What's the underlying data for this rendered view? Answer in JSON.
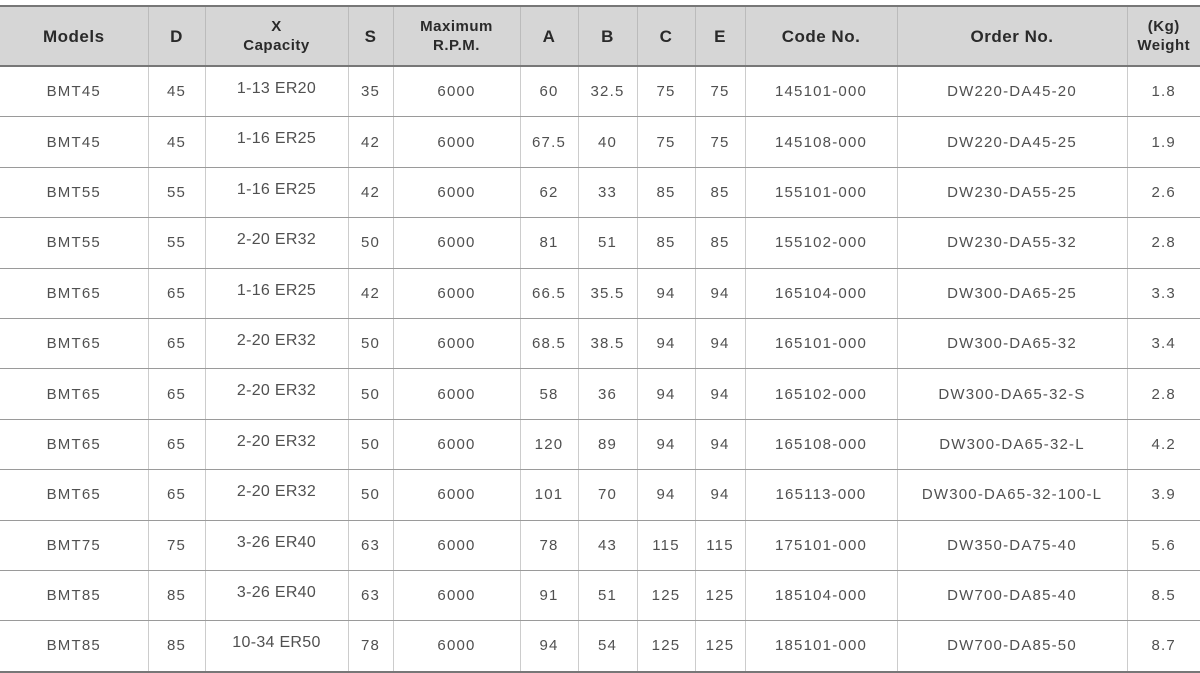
{
  "table": {
    "header": [
      "Models",
      "D",
      [
        "X",
        "Capacity"
      ],
      "S",
      [
        "Maximum",
        "R.P.M."
      ],
      "A",
      "B",
      "C",
      "E",
      "Code No.",
      "Order No.",
      [
        "(Kg)",
        "Weight"
      ]
    ],
    "rows": [
      [
        "BMT45",
        "45",
        "1-13 ER20",
        "35",
        "6000",
        "60",
        "32.5",
        "75",
        "75",
        "145101-000",
        "DW220-DA45-20",
        "1.8"
      ],
      [
        "BMT45",
        "45",
        "1-16 ER25",
        "42",
        "6000",
        "67.5",
        "40",
        "75",
        "75",
        "145108-000",
        "DW220-DA45-25",
        "1.9"
      ],
      [
        "BMT55",
        "55",
        "1-16 ER25",
        "42",
        "6000",
        "62",
        "33",
        "85",
        "85",
        "155101-000",
        "DW230-DA55-25",
        "2.6"
      ],
      [
        "BMT55",
        "55",
        "2-20 ER32",
        "50",
        "6000",
        "81",
        "51",
        "85",
        "85",
        "155102-000",
        "DW230-DA55-32",
        "2.8"
      ],
      [
        "BMT65",
        "65",
        "1-16 ER25",
        "42",
        "6000",
        "66.5",
        "35.5",
        "94",
        "94",
        "165104-000",
        "DW300-DA65-25",
        "3.3"
      ],
      [
        "BMT65",
        "65",
        "2-20 ER32",
        "50",
        "6000",
        "68.5",
        "38.5",
        "94",
        "94",
        "165101-000",
        "DW300-DA65-32",
        "3.4"
      ],
      [
        "BMT65",
        "65",
        "2-20 ER32",
        "50",
        "6000",
        "58",
        "36",
        "94",
        "94",
        "165102-000",
        "DW300-DA65-32-S",
        "2.8"
      ],
      [
        "BMT65",
        "65",
        "2-20 ER32",
        "50",
        "6000",
        "120",
        "89",
        "94",
        "94",
        "165108-000",
        "DW300-DA65-32-L",
        "4.2"
      ],
      [
        "BMT65",
        "65",
        "2-20 ER32",
        "50",
        "6000",
        "101",
        "70",
        "94",
        "94",
        "165113-000",
        "DW300-DA65-32-100-L",
        "3.9"
      ],
      [
        "BMT75",
        "75",
        "3-26 ER40",
        "63",
        "6000",
        "78",
        "43",
        "115",
        "115",
        "175101-000",
        "DW350-DA75-40",
        "5.6"
      ],
      [
        "BMT85",
        "85",
        "3-26 ER40",
        "63",
        "6000",
        "91",
        "51",
        "125",
        "125",
        "185104-000",
        "DW700-DA85-40",
        "8.5"
      ],
      [
        "BMT85",
        "85",
        "10-34 ER50",
        "78",
        "6000",
        "94",
        "54",
        "125",
        "125",
        "185101-000",
        "DW700-DA85-50",
        "8.7"
      ]
    ]
  }
}
